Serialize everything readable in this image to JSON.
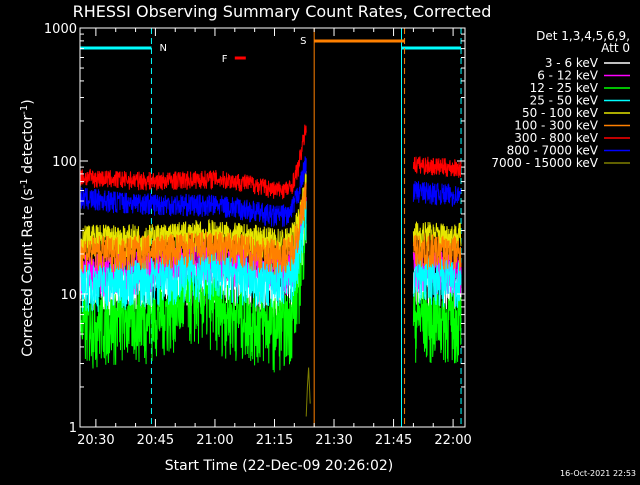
{
  "chart_data": {
    "type": "line",
    "title": "RHESSI Observing Summary Count Rates, Corrected",
    "xlabel": "Start Time (22-Dec-09 20:26:02)",
    "ylabel": "Corrected Count Rate (s",
    "ylabel_sup1": "-1",
    "ylabel_mid": " detector",
    "ylabel_sup2": "-1",
    "ylabel_end": ")",
    "yscale": "log",
    "ylim": [
      1,
      1000
    ],
    "xlim": [
      "20:26:02",
      "22:03:30"
    ],
    "xtick_labels": [
      "20:30",
      "20:45",
      "21:00",
      "21:15",
      "21:30",
      "21:45",
      "22:00"
    ],
    "ytick_labels": [
      "1",
      "10",
      "100",
      "1000"
    ],
    "legend_title_1": "Det 1,3,4,5,6,9,",
    "legend_title_2": "Att 0",
    "legend_position": "right",
    "timestamp": "16-Oct-2021 22:53",
    "gap": [
      "21:24",
      "21:49"
    ],
    "series": [
      {
        "name": "3 - 6 keV",
        "color": "#ffffff",
        "points": [
          [
            "20:26",
            12
          ],
          [
            "20:35",
            11.5
          ],
          [
            "20:45",
            12
          ],
          [
            "20:55",
            13
          ],
          [
            "21:00",
            14
          ],
          [
            "21:05",
            13
          ],
          [
            "21:10",
            12
          ],
          [
            "21:15",
            11
          ],
          [
            "21:19",
            11.5
          ],
          [
            "21:21",
            18
          ],
          [
            "21:23",
            40
          ],
          [
            "21:50",
            13
          ],
          [
            "22:02",
            12
          ]
        ]
      },
      {
        "name": "6 - 12 keV",
        "color": "#ff00ff",
        "points": [
          [
            "20:26",
            15
          ],
          [
            "20:35",
            15
          ],
          [
            "20:45",
            16
          ],
          [
            "20:55",
            18
          ],
          [
            "21:00",
            19
          ],
          [
            "21:05",
            17.5
          ],
          [
            "21:10",
            16.5
          ],
          [
            "21:15",
            15
          ],
          [
            "21:19",
            15.5
          ],
          [
            "21:21",
            24
          ],
          [
            "21:23",
            55
          ],
          [
            "21:50",
            16
          ],
          [
            "22:02",
            15
          ]
        ]
      },
      {
        "name": "12 - 25 keV",
        "color": "#00ff00",
        "points": [
          [
            "20:26",
            6
          ],
          [
            "20:35",
            6.5
          ],
          [
            "20:45",
            7
          ],
          [
            "20:52",
            9
          ],
          [
            "20:58",
            9
          ],
          [
            "21:03",
            7.5
          ],
          [
            "21:10",
            6.5
          ],
          [
            "21:15",
            6
          ],
          [
            "21:19",
            6.5
          ],
          [
            "21:21",
            12
          ],
          [
            "21:23",
            40
          ],
          [
            "21:50",
            7
          ],
          [
            "22:02",
            6.5
          ]
        ]
      },
      {
        "name": "25 - 50 keV",
        "color": "#00ffff",
        "points": [
          [
            "20:26",
            12
          ],
          [
            "20:35",
            12.5
          ],
          [
            "20:45",
            13.5
          ],
          [
            "20:55",
            14.5
          ],
          [
            "21:00",
            15
          ],
          [
            "21:05",
            14
          ],
          [
            "21:10",
            13
          ],
          [
            "21:15",
            12.5
          ],
          [
            "21:19",
            13
          ],
          [
            "21:21",
            20
          ],
          [
            "21:23",
            45
          ],
          [
            "21:50",
            14
          ],
          [
            "22:02",
            13
          ]
        ]
      },
      {
        "name": "50 - 100 keV",
        "color": "#e6e600",
        "points": [
          [
            "20:26",
            26
          ],
          [
            "20:35",
            26
          ],
          [
            "20:45",
            26.5
          ],
          [
            "20:55",
            28
          ],
          [
            "21:00",
            28.5
          ],
          [
            "21:05",
            27
          ],
          [
            "21:10",
            26
          ],
          [
            "21:15",
            24.5
          ],
          [
            "21:19",
            25
          ],
          [
            "21:21",
            35
          ],
          [
            "21:23",
            70
          ],
          [
            "21:50",
            28
          ],
          [
            "22:02",
            27
          ]
        ]
      },
      {
        "name": "100 - 300 keV",
        "color": "#ff8000",
        "points": [
          [
            "20:26",
            21
          ],
          [
            "20:35",
            21
          ],
          [
            "20:45",
            21.5
          ],
          [
            "20:55",
            22.5
          ],
          [
            "21:00",
            23
          ],
          [
            "21:05",
            22
          ],
          [
            "21:10",
            21
          ],
          [
            "21:15",
            20
          ],
          [
            "21:19",
            21
          ],
          [
            "21:21",
            30
          ],
          [
            "21:23",
            62
          ],
          [
            "21:50",
            22
          ],
          [
            "22:02",
            21
          ]
        ]
      },
      {
        "name": "300 - 800 keV",
        "color": "#ff0000",
        "points": [
          [
            "20:26",
            76
          ],
          [
            "20:35",
            73
          ],
          [
            "20:45",
            71
          ],
          [
            "20:55",
            73
          ],
          [
            "21:00",
            74
          ],
          [
            "21:05",
            71
          ],
          [
            "21:10",
            67
          ],
          [
            "21:15",
            61
          ],
          [
            "21:19",
            62
          ],
          [
            "21:21",
            90
          ],
          [
            "21:23",
            185
          ],
          [
            "21:50",
            95
          ],
          [
            "22:02",
            88
          ]
        ]
      },
      {
        "name": "800 - 7000 keV",
        "color": "#0000ff",
        "points": [
          [
            "20:26",
            53
          ],
          [
            "20:35",
            50
          ],
          [
            "20:45",
            48
          ],
          [
            "20:55",
            47
          ],
          [
            "21:00",
            47
          ],
          [
            "21:05",
            45
          ],
          [
            "21:10",
            42
          ],
          [
            "21:15",
            39
          ],
          [
            "21:19",
            40
          ],
          [
            "21:21",
            58
          ],
          [
            "21:23",
            100
          ],
          [
            "21:50",
            60
          ],
          [
            "22:02",
            55
          ]
        ]
      },
      {
        "name": "7000 - 15000 keV",
        "color": "#808000",
        "points": [
          [
            "21:23",
            1.2
          ],
          [
            "21:23.3",
            2
          ],
          [
            "21:23.6",
            2.8
          ],
          [
            "21:24",
            1.5
          ]
        ]
      }
    ],
    "markers": [
      {
        "label": "N",
        "color": "#00ffff"
      },
      {
        "label": "F",
        "color": "#ff0000"
      },
      {
        "label": "S",
        "color": "#ff8000"
      }
    ]
  }
}
